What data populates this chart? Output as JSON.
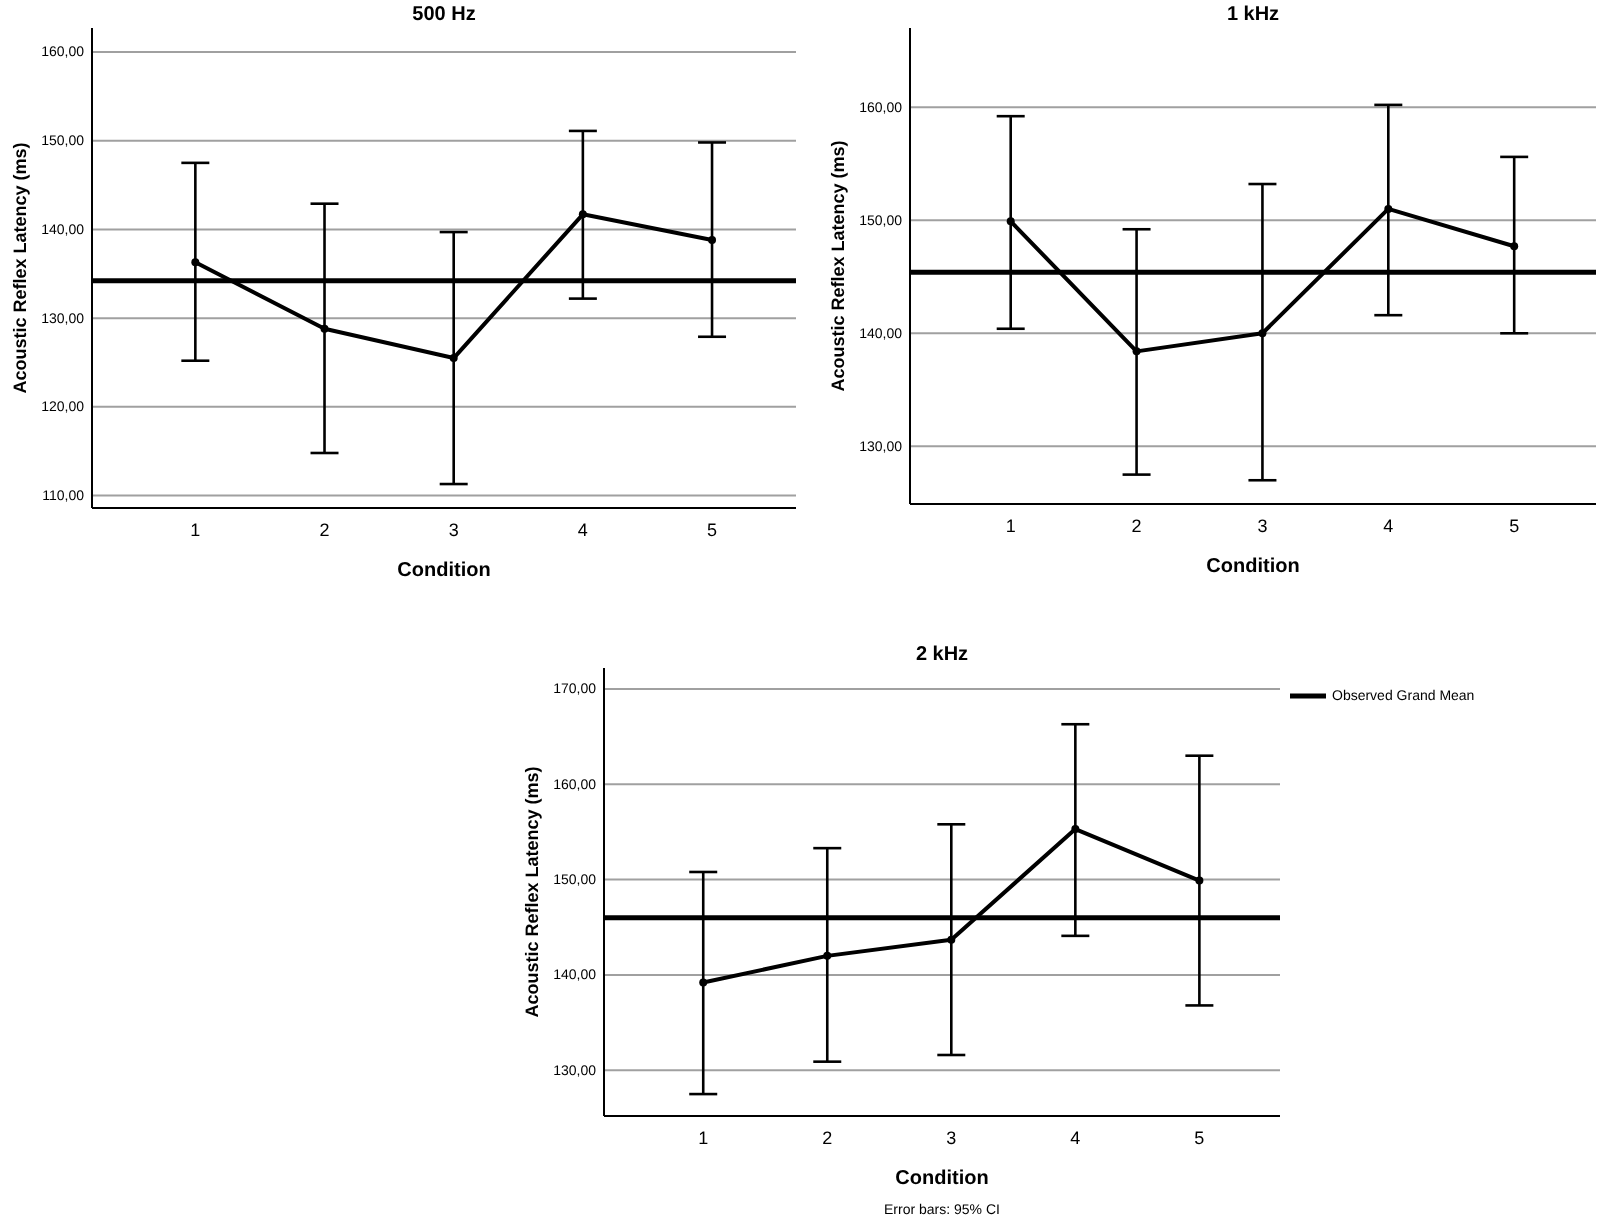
{
  "chart_data": [
    {
      "type": "line",
      "title": "500 Hz",
      "xlabel": "Condition",
      "ylabel": "Acoustic Reflex Latency (ms)",
      "categories": [
        "1",
        "2",
        "3",
        "4",
        "5"
      ],
      "series": [
        {
          "color": "#000000",
          "values": [
            136.3,
            128.8,
            125.5,
            141.7,
            138.8
          ],
          "errors": [
            [
              125.2,
              147.5
            ],
            [
              114.8,
              142.9
            ],
            [
              111.3,
              139.7
            ],
            [
              132.2,
              151.1
            ],
            [
              127.9,
              149.8
            ]
          ]
        }
      ],
      "ylim": [
        108.6,
        162.7
      ],
      "yticks": [
        {
          "value": 110,
          "label": "110,00"
        },
        {
          "value": 120,
          "label": "120,00"
        },
        {
          "value": 130,
          "label": "130,00"
        },
        {
          "value": 140,
          "label": "140,00"
        },
        {
          "value": 150,
          "label": "150,00"
        },
        {
          "value": 160,
          "label": "160,00"
        }
      ],
      "grid": "y",
      "marker": "circle",
      "line_style": "solid",
      "ref_lines": [
        {
          "axis": "y",
          "value": 134.2,
          "color": "#000000"
        }
      ]
    },
    {
      "type": "line",
      "title": "1 kHz",
      "xlabel": "Condition",
      "ylabel": "Acoustic Reflex Latency (ms)",
      "categories": [
        "1",
        "2",
        "3",
        "4",
        "5"
      ],
      "series": [
        {
          "color": "#000000",
          "values": [
            149.9,
            138.4,
            140.0,
            151.0,
            147.7
          ],
          "errors": [
            [
              140.4,
              159.2
            ],
            [
              127.5,
              149.2
            ],
            [
              127.0,
              153.2
            ],
            [
              141.6,
              160.2
            ],
            [
              140.0,
              155.6
            ]
          ]
        }
      ],
      "ylim": [
        124.9,
        167
      ],
      "yticks": [
        {
          "value": 130,
          "label": "130,00"
        },
        {
          "value": 140,
          "label": "140,00"
        },
        {
          "value": 150,
          "label": "150,00"
        },
        {
          "value": 160,
          "label": "160,00"
        }
      ],
      "grid": "y",
      "marker": "circle",
      "line_style": "solid",
      "ref_lines": [
        {
          "axis": "y",
          "value": 145.4,
          "color": "#000000"
        }
      ]
    },
    {
      "type": "line",
      "title": "2 kHz",
      "xlabel": "Condition",
      "ylabel": "Acoustic Reflex Latency (ms)",
      "categories": [
        "1",
        "2",
        "3",
        "4",
        "5"
      ],
      "series": [
        {
          "color": "#000000",
          "values": [
            139.2,
            142.0,
            143.7,
            155.3,
            149.9
          ],
          "errors": [
            [
              127.5,
              150.8
            ],
            [
              130.9,
              153.3
            ],
            [
              131.6,
              155.8
            ],
            [
              144.1,
              166.3
            ],
            [
              136.8,
              163.0
            ]
          ]
        }
      ],
      "ylim": [
        125.2,
        172.2
      ],
      "yticks": [
        {
          "value": 130,
          "label": "130,00"
        },
        {
          "value": 140,
          "label": "140,00"
        },
        {
          "value": 150,
          "label": "150,00"
        },
        {
          "value": 160,
          "label": "160,00"
        },
        {
          "value": 170,
          "label": "170,00"
        }
      ],
      "grid": "y",
      "marker": "circle",
      "line_style": "solid",
      "legend": "top right",
      "ref_lines": [
        {
          "axis": "y",
          "value": 146.0,
          "color": "#000000",
          "label": "Observed Grand Mean"
        }
      ],
      "annotations": [
        "Error bars: 95% CI"
      ]
    }
  ]
}
